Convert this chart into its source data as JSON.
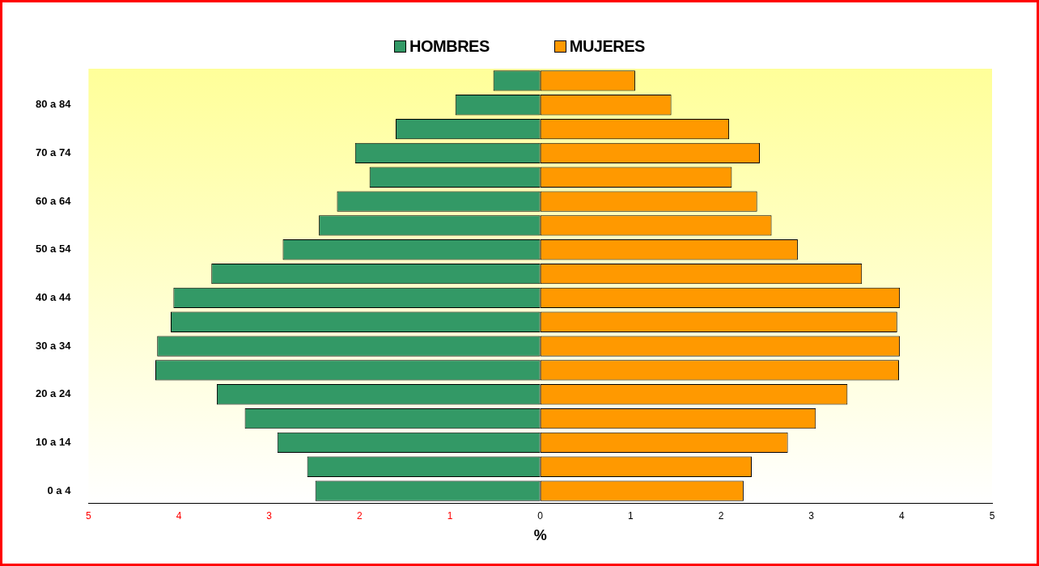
{
  "chart_data": {
    "type": "bar",
    "orientation": "horizontal",
    "stacked": true,
    "xlabel": "%",
    "legend": "top",
    "grid": false,
    "categories": [
      null,
      "80 a 84",
      null,
      "70 a 74",
      null,
      "60 a 64",
      null,
      "50 a 54",
      null,
      "40 a 44",
      null,
      "30 a 34",
      null,
      "20 a 24",
      null,
      "10 a 14",
      null,
      "0 a 4"
    ],
    "series": [
      {
        "name": "HOMBRES",
        "color": "#339966",
        "values": [
          -0.52,
          -0.94,
          -1.6,
          -2.05,
          -1.89,
          -2.25,
          -2.45,
          -2.85,
          -3.64,
          -4.06,
          -4.09,
          -4.24,
          -4.26,
          -3.58,
          -3.27,
          -2.91,
          -2.58,
          -2.49
        ]
      },
      {
        "name": "MUJERES",
        "color": "#ff9900",
        "values": [
          1.05,
          1.45,
          2.09,
          2.43,
          2.12,
          2.4,
          2.56,
          2.85,
          3.56,
          3.98,
          3.95,
          3.98,
          3.97,
          3.4,
          3.05,
          2.74,
          2.34,
          2.25
        ]
      }
    ],
    "xlim": [
      -5,
      5
    ],
    "xticks": [
      {
        "value": -5,
        "label": "5"
      },
      {
        "value": -4,
        "label": "4"
      },
      {
        "value": -3,
        "label": "3"
      },
      {
        "value": -2,
        "label": "2"
      },
      {
        "value": -1,
        "label": "1"
      },
      0,
      1,
      2,
      3,
      4,
      5
    ]
  }
}
